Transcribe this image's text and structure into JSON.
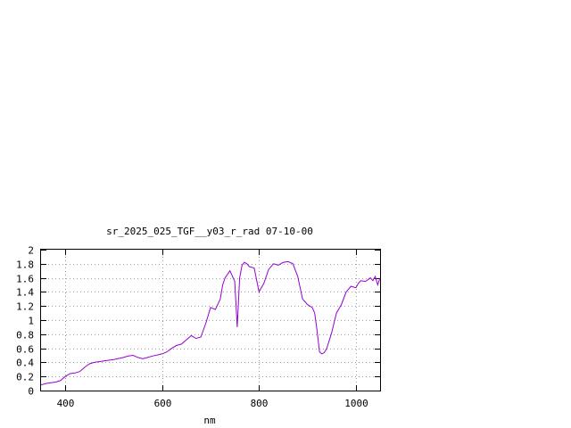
{
  "chart_data": {
    "type": "line",
    "title": "sr_2025_025_TGF__y03_r_rad 07-10-00",
    "xlabel": "nm",
    "ylabel": "",
    "xlim": [
      350,
      1050
    ],
    "ylim": [
      0,
      2
    ],
    "xticks": [
      400,
      600,
      800,
      1000
    ],
    "yticks": [
      0,
      0.2,
      0.4,
      0.6,
      0.8,
      1,
      1.2,
      1.4,
      1.6,
      1.8,
      2
    ],
    "xtick_labels": [
      "400",
      "600",
      "800",
      "1000"
    ],
    "ytick_labels": [
      "0",
      "0.2",
      "0.4",
      "0.6",
      "0.8",
      "1",
      "1.2",
      "1.4",
      "1.6",
      "1.8",
      "2"
    ],
    "grid": true,
    "legend": "none",
    "colors": {
      "series": "#9400d3",
      "grid": "#a0a0a0",
      "axes": "#000000"
    },
    "series": [
      {
        "x": [
          350,
          360,
          370,
          380,
          390,
          400,
          410,
          420,
          430,
          440,
          450,
          460,
          470,
          480,
          500,
          520,
          530,
          540,
          550,
          560,
          570,
          580,
          600,
          610,
          620,
          630,
          640,
          650,
          660,
          670,
          680,
          690,
          700,
          710,
          720,
          725,
          730,
          740,
          750,
          755,
          760,
          765,
          770,
          775,
          780,
          790,
          800,
          810,
          815,
          820,
          830,
          840,
          850,
          860,
          870,
          880,
          890,
          900,
          910,
          915,
          920,
          925,
          930,
          935,
          940,
          950,
          960,
          970,
          980,
          990,
          1000,
          1005,
          1010,
          1020,
          1030,
          1035,
          1040,
          1045,
          1050
        ],
        "y": [
          0.08,
          0.1,
          0.11,
          0.12,
          0.14,
          0.2,
          0.24,
          0.25,
          0.27,
          0.33,
          0.38,
          0.4,
          0.41,
          0.42,
          0.44,
          0.47,
          0.49,
          0.5,
          0.47,
          0.45,
          0.47,
          0.49,
          0.52,
          0.55,
          0.6,
          0.64,
          0.66,
          0.72,
          0.78,
          0.74,
          0.76,
          0.95,
          1.18,
          1.15,
          1.3,
          1.5,
          1.6,
          1.7,
          1.55,
          0.9,
          1.6,
          1.78,
          1.82,
          1.8,
          1.76,
          1.74,
          1.4,
          1.52,
          1.62,
          1.72,
          1.8,
          1.78,
          1.82,
          1.83,
          1.8,
          1.62,
          1.3,
          1.22,
          1.18,
          1.1,
          0.85,
          0.55,
          0.52,
          0.54,
          0.6,
          0.82,
          1.1,
          1.22,
          1.4,
          1.48,
          1.46,
          1.52,
          1.56,
          1.55,
          1.6,
          1.56,
          1.62,
          1.5,
          1.6
        ]
      }
    ]
  }
}
